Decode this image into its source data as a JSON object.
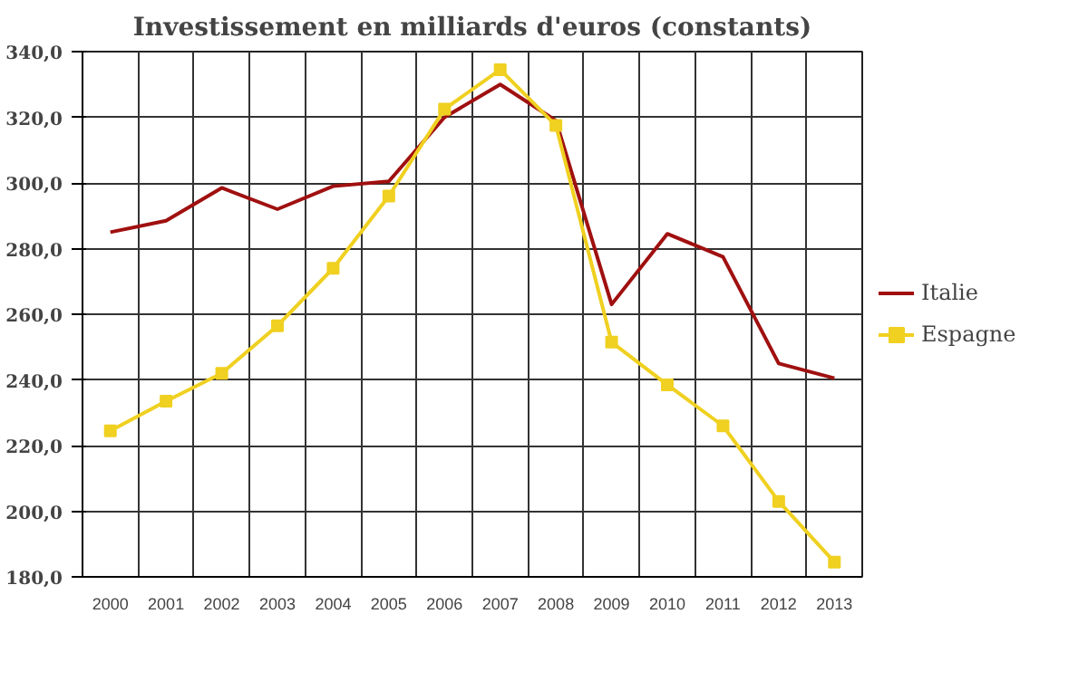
{
  "chart_data": {
    "type": "line",
    "title": "Investissement en milliards d'euros (constants)",
    "categories": [
      "2000",
      "2001",
      "2002",
      "2003",
      "2004",
      "2005",
      "2006",
      "2007",
      "2008",
      "2009",
      "2010",
      "2011",
      "2012",
      "2013"
    ],
    "series": [
      {
        "name": "Italie",
        "color": "#a01010",
        "marker": "none",
        "values": [
          285,
          288.5,
          298.5,
          292,
          299,
          300.5,
          320,
          330,
          319,
          263,
          284.5,
          277.5,
          245,
          240.5
        ]
      },
      {
        "name": "Espagne",
        "color": "#f0d020",
        "marker": "square",
        "values": [
          224.5,
          233.5,
          242,
          256.5,
          274,
          296,
          322.5,
          334.5,
          317.5,
          251.5,
          238.5,
          226,
          203,
          184.5
        ]
      }
    ],
    "ylim": [
      180,
      340
    ],
    "yticks": [
      {
        "value": 180,
        "label": "180,0"
      },
      {
        "value": 200,
        "label": "200,0"
      },
      {
        "value": 220,
        "label": "220,0"
      },
      {
        "value": 240,
        "label": "240,0"
      },
      {
        "value": 260,
        "label": "260,0"
      },
      {
        "value": 280,
        "label": "280,0"
      },
      {
        "value": 300,
        "label": "300,0"
      },
      {
        "value": 320,
        "label": "320,0"
      },
      {
        "value": 340,
        "label": "340,0"
      }
    ],
    "grid": true,
    "legend": "right"
  }
}
